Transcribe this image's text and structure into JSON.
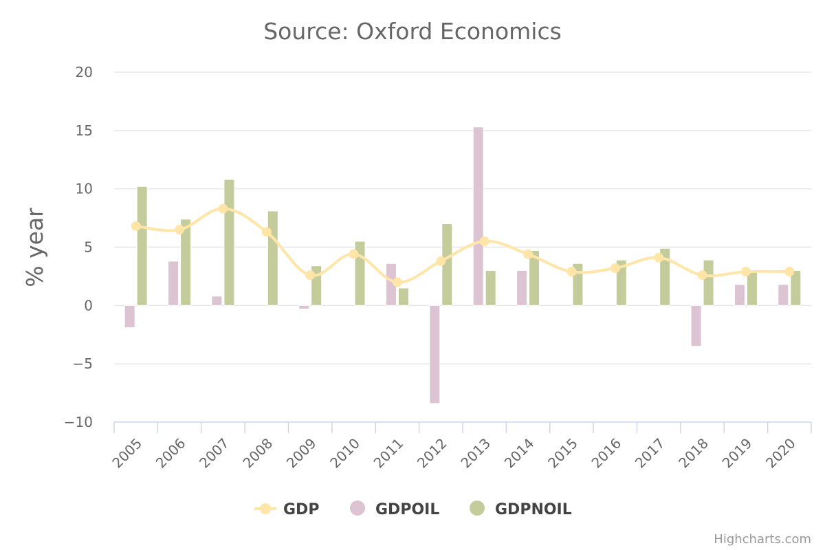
{
  "chart_data": {
    "type": "bar",
    "title": "Source: Oxford Economics",
    "ylabel": "% year",
    "xlabel": "",
    "ylim": [
      -10,
      20
    ],
    "yticks": [
      20,
      15,
      10,
      5,
      0,
      -5,
      -10
    ],
    "ytick_labels": [
      "20",
      "15",
      "10",
      "5",
      "0",
      "−5",
      "−10"
    ],
    "categories": [
      "2005",
      "2006",
      "2007",
      "2008",
      "2009",
      "2010",
      "2011",
      "2012",
      "2013",
      "2014",
      "2015",
      "2016",
      "2017",
      "2018",
      "2019",
      "2020"
    ],
    "series": [
      {
        "name": "GDP",
        "kind": "spline",
        "color": "#ffe6a8",
        "values": [
          6.8,
          6.5,
          8.3,
          6.3,
          2.6,
          4.4,
          2.0,
          3.8,
          5.5,
          4.4,
          2.9,
          3.2,
          4.1,
          2.6,
          2.9,
          2.9
        ]
      },
      {
        "name": "GDPOIL",
        "kind": "column",
        "color": "#dcc4d3",
        "values": [
          -1.9,
          3.8,
          0.8,
          0.0,
          -0.3,
          0.0,
          3.6,
          -8.4,
          15.3,
          3.0,
          0.0,
          0.0,
          0.0,
          -3.5,
          1.8,
          1.8
        ]
      },
      {
        "name": "GDPNOIL",
        "kind": "column",
        "color": "#c5cc9c",
        "values": [
          10.2,
          7.4,
          10.8,
          8.1,
          3.4,
          5.5,
          1.5,
          7.0,
          3.0,
          4.7,
          3.6,
          3.9,
          4.9,
          3.9,
          3.0,
          3.0
        ]
      }
    ],
    "legend_position": "bottom-center",
    "grid": true
  },
  "legend": {
    "gdp": "GDP",
    "gdpoil": "GDPOIL",
    "gdpnoil": "GDPNOIL"
  },
  "credits": "Highcharts.com"
}
